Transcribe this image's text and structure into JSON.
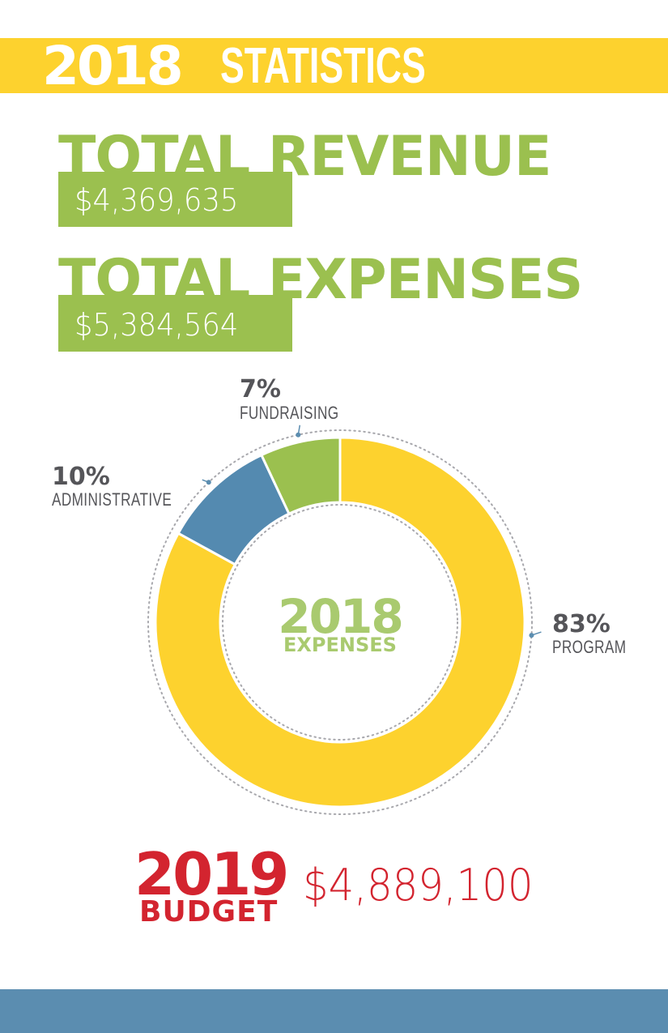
{
  "header": {
    "year": "2018",
    "title": "STATISTICS"
  },
  "revenue": {
    "label": "TOTAL REVENUE",
    "value": "$4,369,635"
  },
  "expenses": {
    "label": "TOTAL EXPENSES",
    "value": "$5,384,564"
  },
  "chart_data": {
    "type": "pie",
    "title": "2018",
    "subtitle": "EXPENSES",
    "slices": [
      {
        "label": "PROGRAM",
        "percent_label": "83%",
        "value": 83,
        "color": "#fdd22e"
      },
      {
        "label": "ADMINISTRATIVE",
        "percent_label": "10%",
        "value": 10,
        "color": "#548ab0"
      },
      {
        "label": "FUNDRAISING",
        "percent_label": "7%",
        "value": 7,
        "color": "#9bc04f"
      }
    ],
    "legend": "none"
  },
  "budget": {
    "year": "2019",
    "label": "BUDGET",
    "value": "$4,889,100"
  },
  "colors": {
    "banner": "#fdd22e",
    "green": "#9bc04f",
    "blue": "#548ab0",
    "red": "#d3242f",
    "footer": "#5b8db0",
    "label_gray": "#555559"
  }
}
